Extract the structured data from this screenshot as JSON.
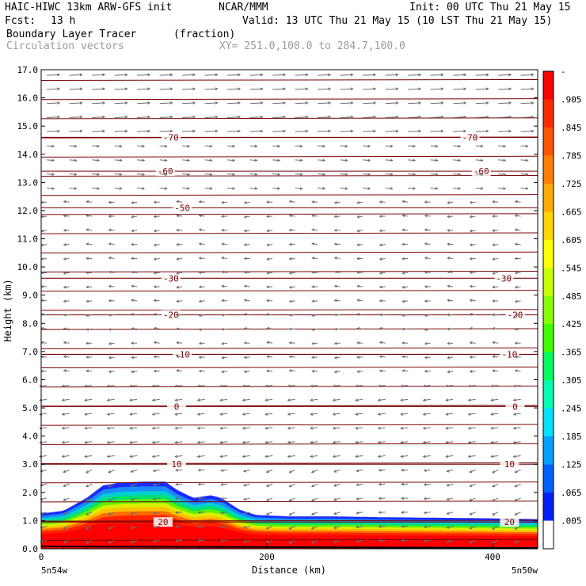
{
  "header": {
    "model": "HAIC-HIWC 13km ARW-GFS init",
    "org": "NCAR/MMM",
    "init": "Init: 00 UTC Thu 21 May 15",
    "fcst_label": "Fcst:",
    "fcst_value": "13 h",
    "valid": "Valid: 13 UTC Thu 21 May 15 (10 LST Thu 21 May 15)",
    "field": "Boundary Layer Tracer",
    "units": "(fraction)",
    "vectors": "Circulation vectors",
    "xy": "XY= 251.0,100.0 to 284.7,100.0"
  },
  "chart_data": {
    "type": "heatmap",
    "title": "Boundary Layer Tracer",
    "units": "(fraction)",
    "xlabel": "Distance (km)",
    "ylabel": "Height (km)",
    "xlim": [
      0,
      440
    ],
    "ylim": [
      0,
      17
    ],
    "x_ticks": [
      0,
      200,
      400
    ],
    "x_tick_labels": [
      "0",
      "200",
      "400"
    ],
    "y_ticks": [
      0,
      1,
      2,
      3,
      4,
      5,
      6,
      7,
      8,
      9,
      10,
      11,
      12,
      13,
      14,
      15,
      16,
      17
    ],
    "y_tick_labels": [
      "0.0",
      "1.0",
      "2.0",
      "3.0",
      "4.0",
      "5.0",
      "6.0",
      "7.0",
      "8.0",
      "9.0",
      "10.0",
      "11.0",
      "12.0",
      "13.0",
      "14.0",
      "15.0",
      "16.0",
      "17.0"
    ],
    "x_end_labels": {
      "left": "5n54w",
      "right": "5n50w"
    },
    "colorbar": {
      "labels": [
        "-",
        ".905",
        ".845",
        ".785",
        ".725",
        ".665",
        ".605",
        ".545",
        ".485",
        ".425",
        ".365",
        ".305",
        ".245",
        ".185",
        ".125",
        ".065",
        ".005"
      ],
      "colors": [
        "#ff0000",
        "#ff2a00",
        "#ff5500",
        "#ff8000",
        "#ffaa00",
        "#ffd400",
        "#ffff00",
        "#c8ff00",
        "#88ff00",
        "#40ff00",
        "#00ff60",
        "#00ffb0",
        "#00e0ff",
        "#00a0ff",
        "#0060ff",
        "#0020ff",
        "#ffffff"
      ]
    },
    "tracer_profile": {
      "x_km": [
        0,
        20,
        40,
        55,
        70,
        90,
        110,
        120,
        135,
        150,
        160,
        175,
        190,
        220,
        260,
        300,
        350,
        400,
        440
      ],
      "top_km": [
        1.25,
        1.35,
        1.8,
        2.25,
        2.35,
        2.38,
        2.38,
        2.1,
        1.8,
        1.9,
        1.8,
        1.4,
        1.2,
        1.15,
        1.15,
        1.12,
        1.1,
        1.08,
        1.05
      ]
    },
    "temperature_contours": [
      {
        "label": "-70",
        "height_km": 14.6,
        "label_x": [
          115,
          380
        ]
      },
      {
        "label": "-60",
        "height_km": 13.4,
        "label_x": [
          110,
          390
        ]
      },
      {
        "label": "-50",
        "height_km": 12.1,
        "label_x": [
          125
        ]
      },
      {
        "label": "-30",
        "height_km": 9.6,
        "label_x": [
          115,
          410
        ]
      },
      {
        "label": "-20",
        "height_km": 8.3,
        "label_x": [
          115,
          420
        ]
      },
      {
        "label": "-10",
        "height_km": 6.9,
        "label_x": [
          125,
          415
        ]
      },
      {
        "label": "0",
        "height_km": 5.05,
        "label_x": [
          120,
          420
        ]
      },
      {
        "label": "10",
        "height_km": 3.0,
        "label_x": [
          120,
          415
        ]
      },
      {
        "label": "20",
        "height_km": 0.95,
        "label_x": [
          108,
          415
        ]
      }
    ]
  }
}
